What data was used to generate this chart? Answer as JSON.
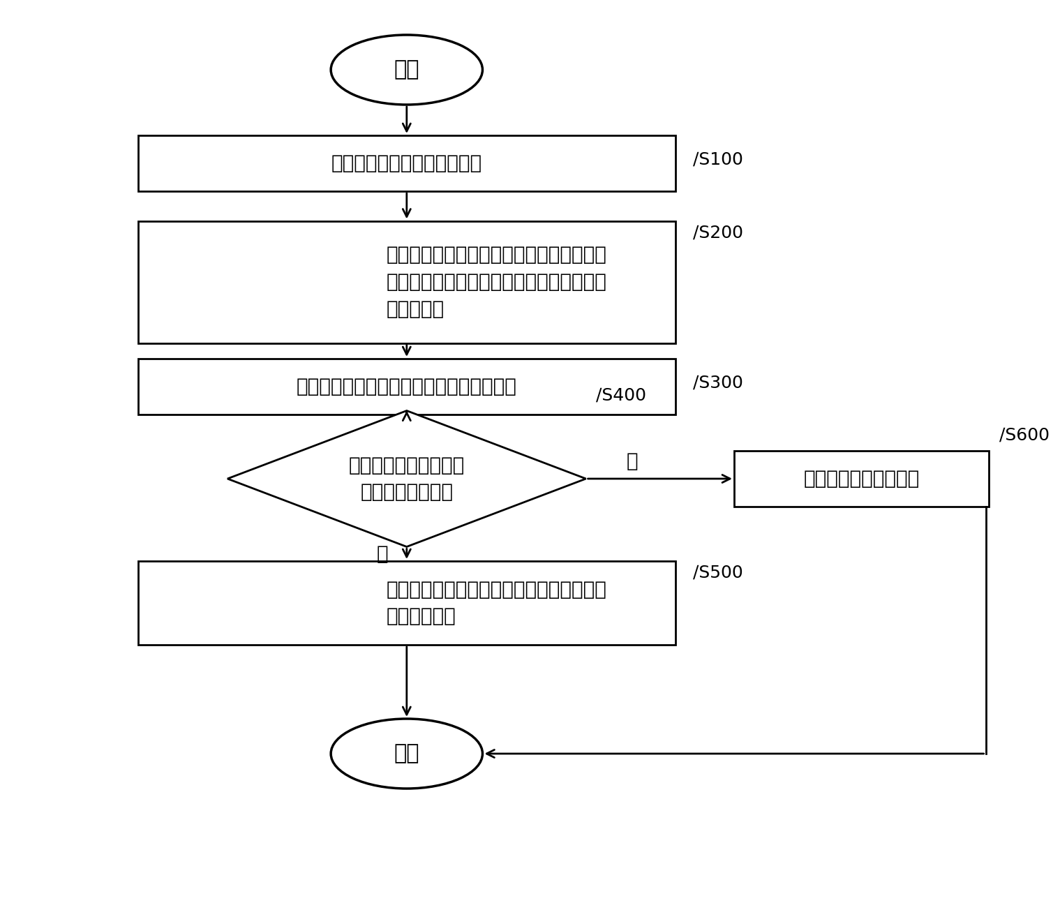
{
  "bg_color": "#ffffff",
  "line_color": "#000000",
  "box_fill": "#ffffff",
  "text_color": "#000000",
  "font_size": 20,
  "label_font_size": 18,
  "start_label": "开始",
  "end_label": "结束",
  "s100_text": "获取车辆所在位置的环境信息",
  "s100_label": "S100",
  "s200_text_lines": [
    "响应于雨刷系统的启动指令，确定所述雨刷",
    "系统的本次启动时刻与上一次启动时刻之间",
    "的时间间隔"
  ],
  "s200_label": "S200",
  "s300_text": "根据所述环境信息确定对应的预设时间阙値",
  "s300_label": "S300",
  "s400_text_lines": [
    "判断所述时间间隔是否",
    "大于预设时间阙値"
  ],
  "s400_label": "S400",
  "s500_text_lines": [
    "控制喷水装置向车辆玻璃外表面喷水，然后",
    "控制刷臂运动"
  ],
  "s500_label": "S500",
  "s600_text": "直接控制所述刷臂运动",
  "s600_label": "S600",
  "yes_label": "是",
  "no_label": "否"
}
